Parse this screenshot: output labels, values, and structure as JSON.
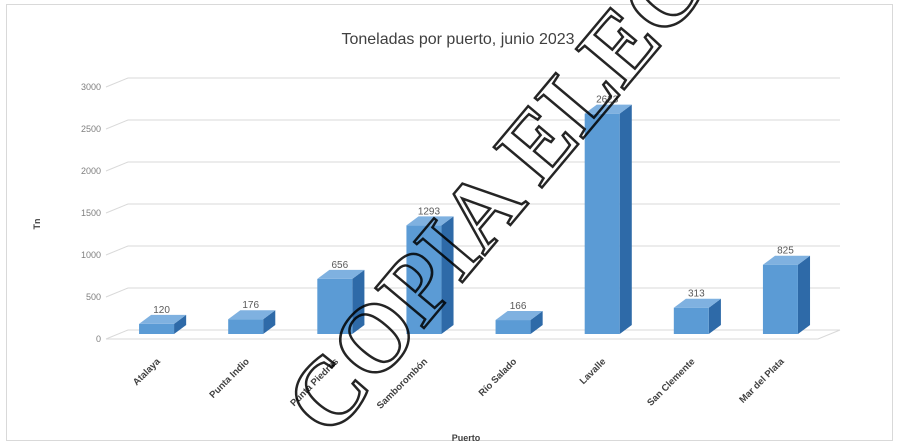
{
  "chart_data": {
    "type": "bar",
    "title": "Toneladas por puerto, junio 2023",
    "xlabel": "Puerto",
    "ylabel": "Tn",
    "ylim": [
      0,
      3000
    ],
    "yticks": [
      0,
      500,
      1000,
      1500,
      2000,
      2500,
      3000
    ],
    "grid": true,
    "categories": [
      "Atalaya",
      "Punta Indio",
      "Punta Piedras",
      "Samborombón",
      "Río Salado",
      "Lavalle",
      "San Clemente",
      "Mar del Plata"
    ],
    "values": [
      120,
      176,
      656,
      1293,
      166,
      2623,
      313,
      825
    ],
    "bar_color": "#5b9bd5"
  },
  "watermark": "COPIA ELECTRÓNICA IN"
}
